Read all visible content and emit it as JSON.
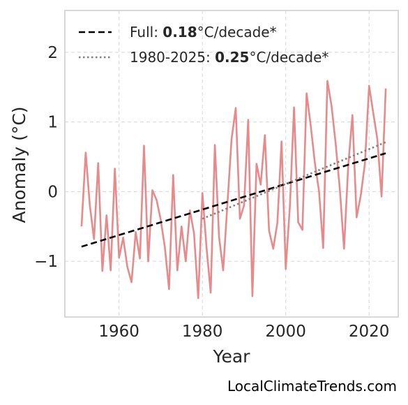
{
  "chart_data": {
    "type": "line",
    "xlabel": "Year",
    "ylabel": "Anomaly (°C)",
    "xlim": [
      1947,
      2027
    ],
    "ylim": [
      -1.8,
      2.6
    ],
    "xticks": [
      1960,
      1980,
      2000,
      2020
    ],
    "yticks": [
      2,
      1,
      0,
      -1
    ],
    "ytick_labels": [
      "2",
      "1",
      "0",
      "−1"
    ],
    "grid": true,
    "legend_position": "top-left",
    "series": [
      {
        "x": [
          1951,
          1952,
          1953,
          1954,
          1955,
          1956,
          1957,
          1958,
          1959,
          1960,
          1961,
          1962,
          1963,
          1964,
          1965,
          1966,
          1967,
          1968,
          1969,
          1970,
          1971,
          1972,
          1973,
          1974,
          1975,
          1976,
          1977,
          1978,
          1979,
          1980,
          1981,
          1982,
          1983,
          1984,
          1985,
          1986,
          1987,
          1988,
          1989,
          1990,
          1991,
          1992,
          1993,
          1994,
          1995,
          1996,
          1997,
          1998,
          1999,
          2000,
          2001,
          2002,
          2003,
          2004,
          2005,
          2006,
          2007,
          2008,
          2009,
          2010,
          2011,
          2012,
          2013,
          2014,
          2015,
          2016,
          2017,
          2018,
          2019,
          2020,
          2021,
          2022,
          2023,
          2024
        ],
        "y": [
          -0.5,
          0.56,
          -0.2,
          -0.68,
          0.41,
          -1.14,
          -0.34,
          -1.13,
          0.33,
          -0.95,
          -0.66,
          -1.08,
          -1.3,
          -0.58,
          -0.96,
          0.66,
          -1.0,
          0.02,
          -0.12,
          -0.4,
          -0.8,
          -1.4,
          0.24,
          -1.13,
          -0.5,
          -1.0,
          -0.27,
          -0.6,
          -1.53,
          -0.02,
          -0.8,
          -1.45,
          0.67,
          -0.65,
          -1.13,
          -0.19,
          0.75,
          1.2,
          -0.39,
          -0.2,
          1.03,
          -1.5,
          0.4,
          0.1,
          0.81,
          -0.56,
          -0.82,
          -0.45,
          0.72,
          -1.11,
          -0.2,
          1.21,
          -0.44,
          -0.55,
          1.41,
          0.95,
          0.41,
          0.0,
          -0.81,
          1.59,
          1.23,
          0.68,
          0.03,
          -0.82,
          0.37,
          1.1,
          -0.37,
          -0.06,
          0.4,
          1.52,
          1.13,
          0.75,
          -0.07,
          1.48
        ],
        "color": "#e8898b"
      },
      {
        "name": "Full: 0.18°C/decade*",
        "x": [
          1951,
          2024
        ],
        "y": [
          -0.79,
          0.55
        ],
        "color": "#000000",
        "style": "dashed"
      },
      {
        "name": "1980-2025: 0.25°C/decade*",
        "x": [
          1980,
          2024
        ],
        "y": [
          -0.39,
          0.71
        ],
        "color": "#808080",
        "style": "dotted"
      }
    ],
    "legend": [
      {
        "prefix": "Full: ",
        "bold": "0.18",
        "suffix": "°C/decade*"
      },
      {
        "prefix": "1980-2025: ",
        "bold": "0.25",
        "suffix": "°C/decade*"
      }
    ]
  },
  "credit": "LocalClimateTrends.com"
}
